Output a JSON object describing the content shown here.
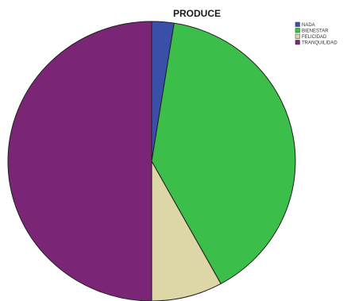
{
  "chart_data": {
    "type": "pie",
    "title": "PRODUCE",
    "categories": [
      "NADA",
      "BIENESTAR",
      "FELICIDAD",
      "TRANQUILIDAD"
    ],
    "values": [
      2.5,
      39.5,
      8.0,
      50.0
    ],
    "colors": [
      "#3a50a8",
      "#3cbf4a",
      "#ddd6a6",
      "#7b2577"
    ],
    "legend_position": "top-right"
  }
}
